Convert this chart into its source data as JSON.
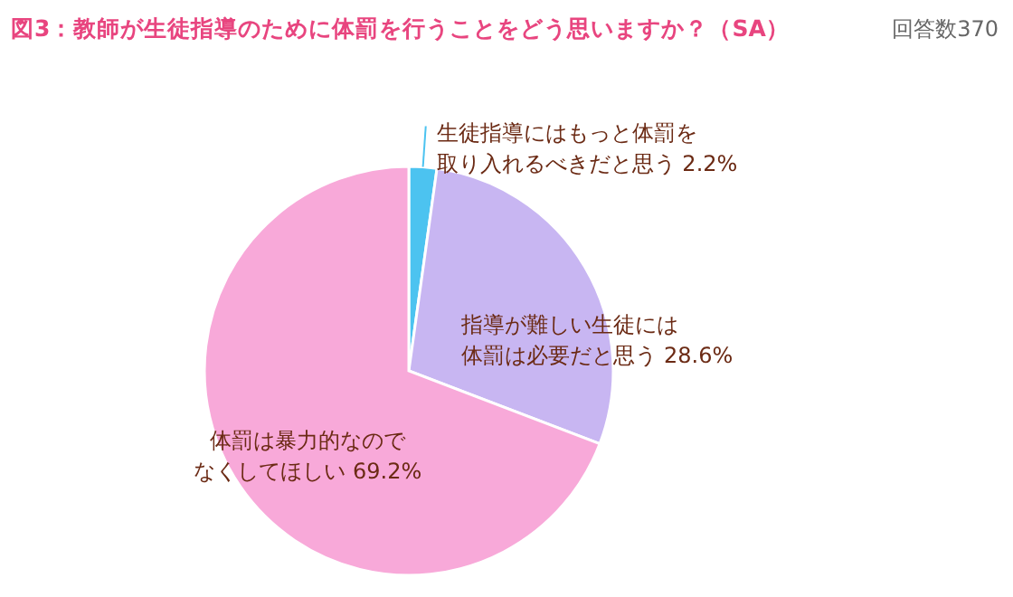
{
  "chart_data": {
    "type": "pie",
    "title": "図3：教師が生徒指導のために体罰を行うことをどう思いますか？（SA）",
    "subtitle": "回答数370",
    "categories": [
      "生徒指導にはもっと体罰を取り入れるべきだと思う",
      "指導が難しい生徒には体罰は必要だと思う",
      "体罰は暴力的なのでなくしてほしい"
    ],
    "values": [
      2.2,
      28.6,
      69.2
    ],
    "value_labels": [
      "2.2%",
      "28.6%",
      "69.2%"
    ],
    "colors": [
      "#4cc3f0",
      "#c8b6f2",
      "#f8a9d9"
    ]
  }
}
